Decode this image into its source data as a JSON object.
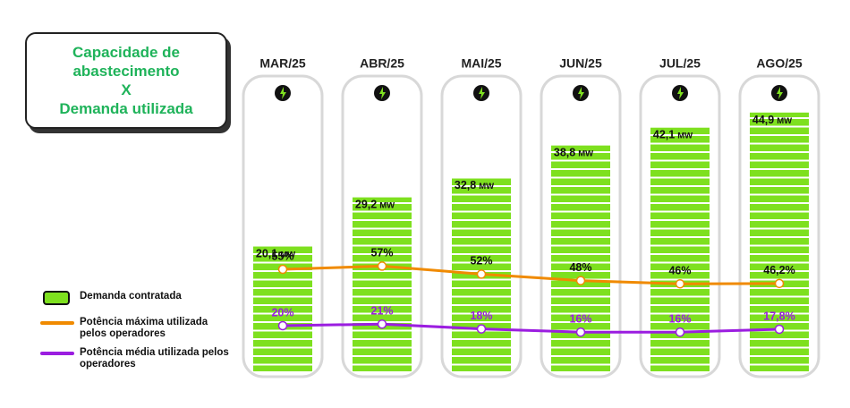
{
  "chart_data": {
    "type": "bar",
    "title": [
      "Capacidade de",
      "abastecimento",
      "X",
      "Demanda utilizada"
    ],
    "categories": [
      "MAR/25",
      "ABR/25",
      "MAI/25",
      "JUN/25",
      "JUL/25",
      "AGO/25"
    ],
    "unit": "MW",
    "series": [
      {
        "name": "Demanda contratada",
        "color": "#7ee01f",
        "values": [
          20.1,
          29.2,
          32.8,
          38.8,
          42.1,
          44.9
        ],
        "value_labels": [
          "20,1",
          "29,2",
          "32,8",
          "38,8",
          "42,1",
          "44,9"
        ]
      },
      {
        "name": "Potência máxima utilizada pelos operadores",
        "color": "#f08a00",
        "axis": "y2",
        "values": [
          55,
          57,
          52,
          48,
          46,
          46.2
        ],
        "value_labels": [
          "55%",
          "57%",
          "52%",
          "48%",
          "46%",
          "46,2%"
        ]
      },
      {
        "name": "Potência média utilizada pelos operadores",
        "color": "#9b1de0",
        "axis": "y2",
        "values": [
          20,
          21,
          18,
          16,
          16,
          17.8
        ],
        "value_labels": [
          "20%",
          "21%",
          "18%",
          "16%",
          "16%",
          "17,8%"
        ]
      }
    ],
    "ylim": [
      -3,
      50
    ],
    "y2lim": [
      0,
      100
    ]
  }
}
